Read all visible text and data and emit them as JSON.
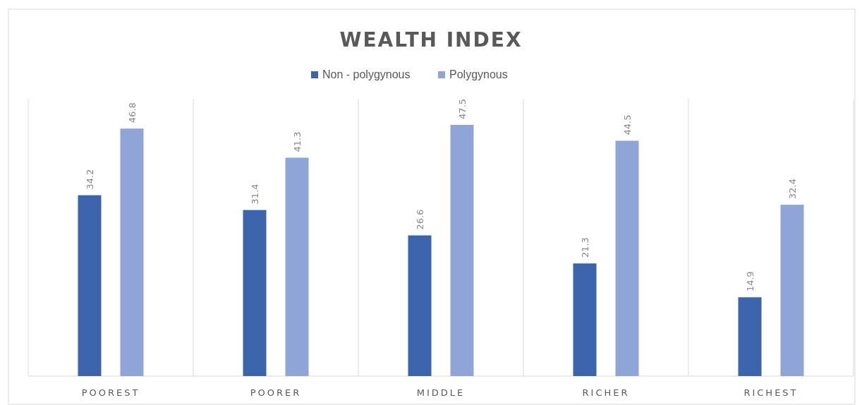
{
  "chart_data": {
    "type": "bar",
    "title": "WEALTH INDEX",
    "categories": [
      "POOREST",
      "POORER",
      "MIDDLE",
      "RICHER",
      "RICHEST"
    ],
    "series": [
      {
        "name": "Non - polygynous",
        "color": "#3b64ad",
        "values": [
          34.2,
          31.4,
          26.6,
          21.3,
          14.9
        ]
      },
      {
        "name": "Polygynous",
        "color": "#8fa5d8",
        "values": [
          46.8,
          41.3,
          47.5,
          44.5,
          32.4
        ]
      }
    ],
    "data_labels": true,
    "legend": "top"
  }
}
